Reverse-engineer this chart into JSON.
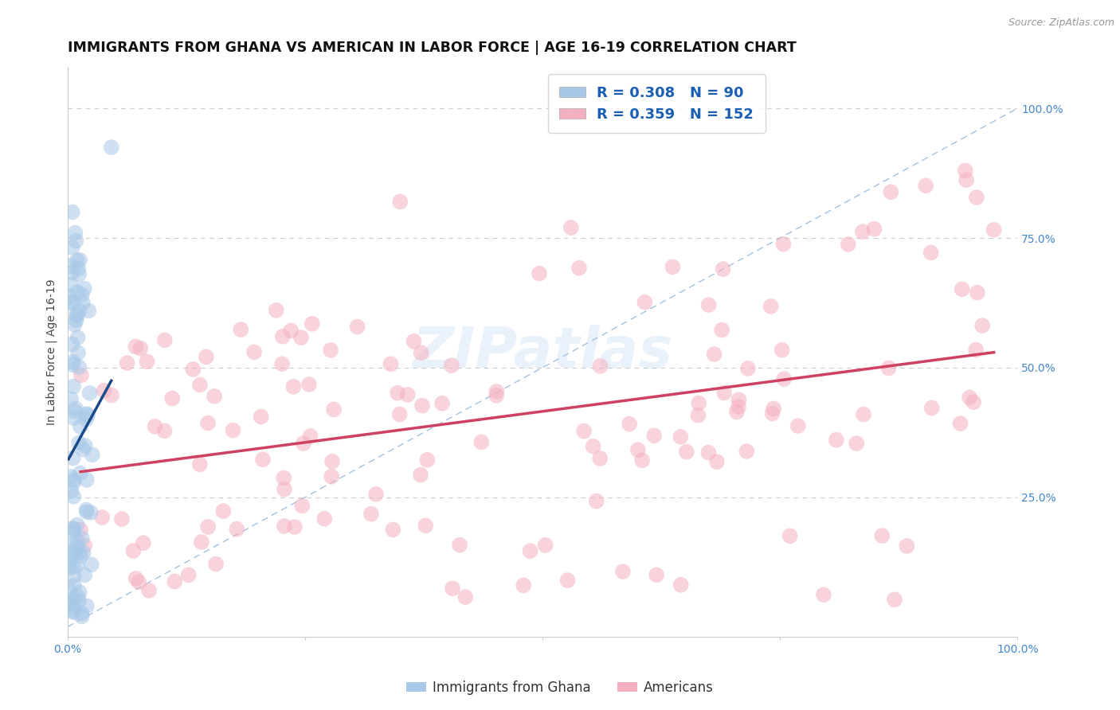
{
  "title": "IMMIGRANTS FROM GHANA VS AMERICAN IN LABOR FORCE | AGE 16-19 CORRELATION CHART",
  "source_text": "Source: ZipAtlas.com",
  "ylabel": "In Labor Force | Age 16-19",
  "xlim": [
    0.0,
    1.0
  ],
  "ylim": [
    -0.02,
    1.08
  ],
  "R_blue": 0.308,
  "N_blue": 90,
  "R_pink": 0.359,
  "N_pink": 152,
  "blue_color": "#a8c8e8",
  "pink_color": "#f4b0c0",
  "blue_line_color": "#1a4a8a",
  "pink_line_color": "#d04060",
  "diag_line_color": "#99bbdd",
  "grid_color": "#cccccc",
  "title_fontsize": 12.5,
  "label_fontsize": 10,
  "tick_fontsize": 10,
  "legend_fontsize": 13,
  "tick_color": "#4488cc",
  "legend_text_color": "#1a5fb4",
  "watermark": "ZIPatlas",
  "watermark_color": "#aaccee",
  "source_color": "#999999"
}
